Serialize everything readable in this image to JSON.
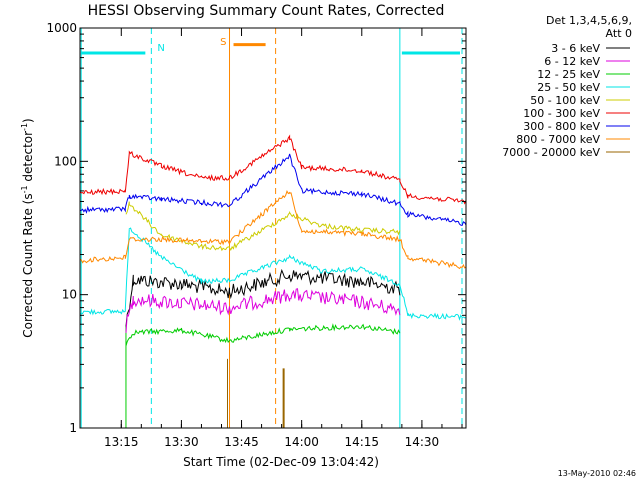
{
  "chart_data": {
    "type": "line",
    "title": "HESSI Observing Summary Count Rates, Corrected",
    "xlabel": "Start Time (02-Dec-09 13:04:42)",
    "ylabel_main": "Corrected Count Rate (s",
    "ylabel_sup1": "-1",
    "ylabel_mid": " detector",
    "ylabel_sup2": "-1",
    "ylabel_end": ")",
    "yscale": "log",
    "ylim": [
      1,
      1000
    ],
    "xlim": [
      "13:04:42",
      "14:41:00"
    ],
    "x_ticks": [
      "13:15",
      "13:30",
      "13:45",
      "14:00",
      "14:15",
      "14:30"
    ],
    "y_ticks": [
      "1",
      "10",
      "100",
      "1000"
    ],
    "legend_title": [
      "Det 1,3,4,5,6,9,",
      "Att 0"
    ],
    "legend_placement": "top-right, outside plot",
    "markers": {
      "night": "N",
      "saa": "S"
    },
    "footer": "13-May-2010 02:46",
    "series": [
      {
        "name": "3 - 6 keV",
        "color": "#000000",
        "points": [
          [
            "13:16:10",
            6.0
          ],
          [
            "13:18:00",
            13
          ],
          [
            "13:30:00",
            12
          ],
          [
            "13:42:00",
            10.5
          ],
          [
            "13:57:00",
            14
          ],
          [
            "14:15:00",
            12.5
          ],
          [
            "14:24:30",
            11
          ]
        ]
      },
      {
        "name": "6 - 12 keV",
        "color": "#dd00dd",
        "points": [
          [
            "13:16:10",
            5.8
          ],
          [
            "13:18:00",
            9.3
          ],
          [
            "13:30:00",
            8.6
          ],
          [
            "13:42:00",
            8
          ],
          [
            "13:57:00",
            10
          ],
          [
            "14:15:00",
            8.8
          ],
          [
            "14:24:30",
            7.6
          ]
        ]
      },
      {
        "name": "12 - 25 keV",
        "color": "#00cc00",
        "points": [
          [
            "13:16:10",
            4.3
          ],
          [
            "13:18:00",
            5.2
          ],
          [
            "13:30:00",
            5.4
          ],
          [
            "13:42:00",
            4.5
          ],
          [
            "13:57:00",
            5.5
          ],
          [
            "14:15:00",
            5.8
          ],
          [
            "14:24:30",
            5.2
          ]
        ]
      },
      {
        "name": "25 - 50 keV",
        "color": "#00e6e6",
        "points": [
          [
            "13:04:42",
            7.4
          ],
          [
            "13:16:00",
            7.5
          ],
          [
            "13:17:00",
            32
          ],
          [
            "13:25:00",
            19
          ],
          [
            "13:35:00",
            12.5
          ],
          [
            "13:42:00",
            12.8
          ],
          [
            "13:57:00",
            19
          ],
          [
            "14:05:00",
            15
          ],
          [
            "14:15:00",
            15.5
          ],
          [
            "14:24:30",
            12
          ],
          [
            "14:26:30",
            7
          ],
          [
            "14:41:00",
            6.8
          ]
        ]
      },
      {
        "name": "50 - 100 keV",
        "color": "#cccc00",
        "points": [
          [
            "13:16:10",
            40
          ],
          [
            "13:17:00",
            48
          ],
          [
            "13:25:00",
            28
          ],
          [
            "13:35:00",
            23
          ],
          [
            "13:42:00",
            22
          ],
          [
            "13:57:00",
            40
          ],
          [
            "14:05:00",
            33
          ],
          [
            "14:15:00",
            30.5
          ],
          [
            "14:24:30",
            29.5
          ]
        ]
      },
      {
        "name": "100 - 300 keV",
        "color": "#ee0000",
        "points": [
          [
            "13:04:42",
            58
          ],
          [
            "13:16:00",
            60
          ],
          [
            "13:17:00",
            115
          ],
          [
            "13:25:00",
            92
          ],
          [
            "13:35:00",
            75
          ],
          [
            "13:42:00",
            75
          ],
          [
            "13:57:00",
            150
          ],
          [
            "14:00:00",
            90
          ],
          [
            "14:15:00",
            85
          ],
          [
            "14:24:30",
            72
          ],
          [
            "14:26:30",
            55
          ],
          [
            "14:41:00",
            50
          ]
        ]
      },
      {
        "name": "300 - 800 keV",
        "color": "#0000ee",
        "points": [
          [
            "13:04:42",
            43
          ],
          [
            "13:16:00",
            44
          ],
          [
            "13:17:00",
            55
          ],
          [
            "13:25:00",
            52
          ],
          [
            "13:35:00",
            49
          ],
          [
            "13:42:00",
            47
          ],
          [
            "13:57:00",
            110
          ],
          [
            "14:00:00",
            60
          ],
          [
            "14:15:00",
            57
          ],
          [
            "14:24:30",
            48
          ],
          [
            "14:26:30",
            40
          ],
          [
            "14:41:00",
            34
          ]
        ]
      },
      {
        "name": "800 - 7000 keV",
        "color": "#ff8800",
        "points": [
          [
            "13:04:42",
            18
          ],
          [
            "13:16:00",
            19
          ],
          [
            "13:17:00",
            26
          ],
          [
            "13:25:00",
            26
          ],
          [
            "13:35:00",
            25
          ],
          [
            "13:42:00",
            25
          ],
          [
            "13:57:00",
            60
          ],
          [
            "14:00:00",
            30
          ],
          [
            "14:15:00",
            28.5
          ],
          [
            "14:24:30",
            26
          ],
          [
            "14:26:30",
            19
          ],
          [
            "14:41:00",
            16
          ]
        ]
      },
      {
        "name": "7000 - 20000 keV",
        "color": "#996600",
        "points": []
      }
    ]
  }
}
